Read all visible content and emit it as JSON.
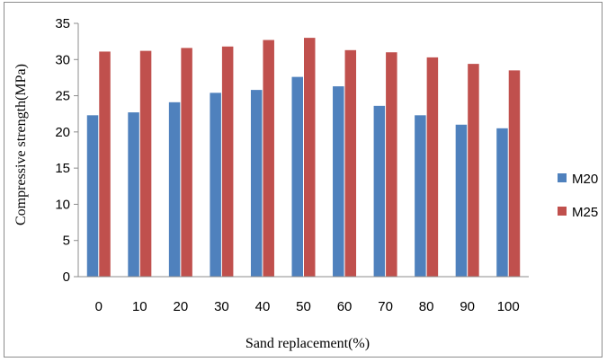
{
  "chart_data": {
    "type": "bar",
    "xlabel": "Sand replacement(%)",
    "ylabel": "Compressive strength(MPa)",
    "ylim": [
      0,
      35
    ],
    "yticks": [
      0,
      5,
      10,
      15,
      20,
      25,
      30,
      35
    ],
    "grid": false,
    "legend_position": "right",
    "categories": [
      "0",
      "10",
      "20",
      "30",
      "40",
      "50",
      "60",
      "70",
      "80",
      "90",
      "100"
    ],
    "series": [
      {
        "name": "M20",
        "color": "#4f81bd",
        "values": [
          22.3,
          22.7,
          24.1,
          25.4,
          25.8,
          27.6,
          26.3,
          23.6,
          22.3,
          21.0,
          20.5
        ]
      },
      {
        "name": "M25",
        "color": "#c0504d",
        "values": [
          31.1,
          31.2,
          31.6,
          31.8,
          32.7,
          33.0,
          31.3,
          31.0,
          30.3,
          29.4,
          28.5
        ]
      }
    ]
  }
}
